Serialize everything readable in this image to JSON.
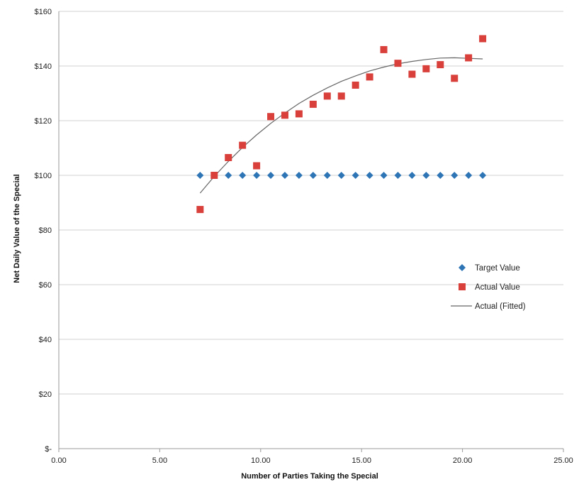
{
  "chart_data": {
    "type": "scatter",
    "title": "",
    "xlabel": "Number of Parties Taking the Special",
    "ylabel": "Net Daily Value of the Special",
    "xlim": [
      0,
      25
    ],
    "ylim": [
      0,
      160
    ],
    "x_ticks": [
      0,
      5,
      10,
      15,
      20,
      25
    ],
    "x_tick_labels": [
      "0.00",
      "5.00",
      "10.00",
      "15.00",
      "20.00",
      "25.00"
    ],
    "y_ticks": [
      0,
      20,
      40,
      60,
      80,
      100,
      120,
      140,
      160
    ],
    "y_tick_labels": [
      "$-",
      "$20",
      "$40",
      "$60",
      "$80",
      "$100",
      "$120",
      "$140",
      "$160"
    ],
    "grid": "horizontal",
    "legend_position": "right",
    "series": [
      {
        "name": "Target Value",
        "marker": "diamond",
        "color": "#2E75B6",
        "x": [
          7.0,
          7.7,
          8.4,
          9.1,
          9.8,
          10.5,
          11.2,
          11.9,
          12.6,
          13.3,
          14.0,
          14.7,
          15.4,
          16.1,
          16.8,
          17.5,
          18.2,
          18.9,
          19.6,
          20.3,
          21.0
        ],
        "y": [
          100,
          100,
          100,
          100,
          100,
          100,
          100,
          100,
          100,
          100,
          100,
          100,
          100,
          100,
          100,
          100,
          100,
          100,
          100,
          100,
          100
        ]
      },
      {
        "name": "Actual Value",
        "marker": "square",
        "color": "#D9403B",
        "x": [
          7.0,
          7.7,
          8.4,
          9.1,
          9.8,
          10.5,
          11.2,
          11.9,
          12.6,
          13.3,
          14.0,
          14.7,
          15.4,
          16.1,
          16.8,
          17.5,
          18.2,
          18.9,
          19.6,
          20.3,
          21.0
        ],
        "y": [
          87.5,
          100,
          106.5,
          111,
          103.5,
          121.5,
          122,
          122.5,
          126,
          129,
          129,
          133,
          136,
          146,
          141,
          137,
          139,
          140.5,
          135.5,
          143,
          150
        ]
      },
      {
        "name": "Actual (Fitted)",
        "line": true,
        "color": "#666666",
        "x": [
          7.0,
          7.7,
          8.4,
          9.1,
          9.8,
          10.5,
          11.2,
          11.9,
          12.6,
          13.3,
          14.0,
          14.7,
          15.4,
          16.1,
          16.8,
          17.5,
          18.2,
          18.9,
          19.6,
          20.3,
          21.0
        ],
        "y": [
          93.5,
          99.6,
          105.1,
          110.2,
          114.8,
          119.0,
          122.8,
          126.3,
          129.3,
          132.0,
          134.4,
          136.4,
          138.2,
          139.6,
          140.8,
          141.7,
          142.4,
          142.9,
          143.0,
          142.8,
          142.6
        ]
      }
    ]
  }
}
